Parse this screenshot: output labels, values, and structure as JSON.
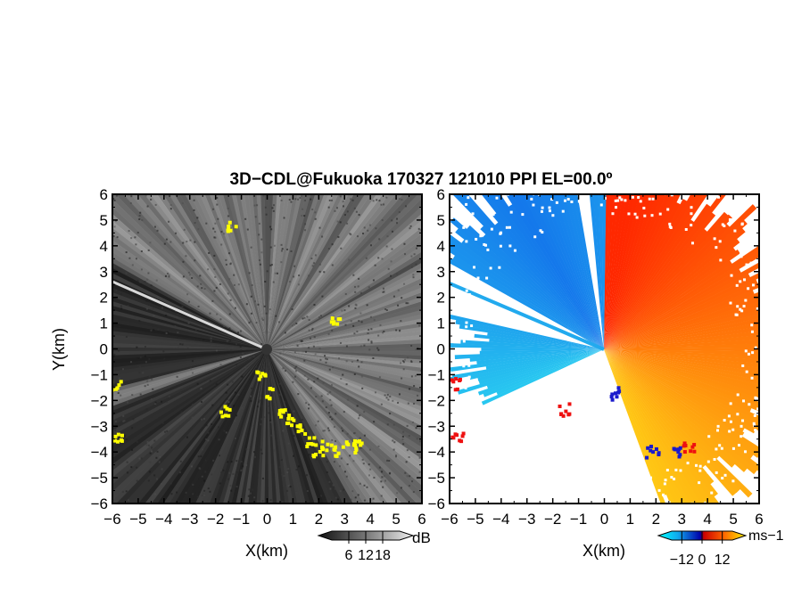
{
  "title": "3D−CDL@Fukuoka 170327 121010 PPI EL=00.0º",
  "chart_data": [
    {
      "type": "heatmap",
      "panel": "reflectivity",
      "xlabel": "X(km)",
      "ylabel": "Y(km)",
      "xlim": [
        -6,
        6
      ],
      "ylim": [
        -6,
        6
      ],
      "x_ticks": [
        "−6",
        "−5",
        "−4",
        "−3",
        "−2",
        "−1",
        "0",
        "1",
        "2",
        "3",
        "4",
        "5",
        "6"
      ],
      "y_ticks": [
        "6",
        "5",
        "4",
        "3",
        "2",
        "1",
        "0",
        "−1",
        "−2",
        "−3",
        "−4",
        "−5",
        "−6"
      ],
      "colorbar": {
        "unit": "dB",
        "ticks": [
          "6",
          "12",
          "18"
        ],
        "range": [
          0,
          24
        ]
      },
      "colors": {
        "background": "#262626",
        "low": "#1e1e1e",
        "high": "#f2f2f2",
        "highlight": "#ffff00"
      }
    },
    {
      "type": "heatmap",
      "panel": "doppler-velocity",
      "xlabel": "X(km)",
      "xlim": [
        -6,
        6
      ],
      "ylim": [
        -6,
        6
      ],
      "x_ticks": [
        "−6",
        "−5",
        "−4",
        "−3",
        "−2",
        "−1",
        "0",
        "1",
        "2",
        "3",
        "4",
        "5",
        "6"
      ],
      "y_ticks": [
        "6",
        "5",
        "4",
        "3",
        "2",
        "1",
        "0",
        "−1",
        "−2",
        "−3",
        "−4",
        "−5",
        "−6"
      ],
      "colorbar": {
        "unit": "ms−1",
        "ticks": [
          "−12",
          "0",
          "12"
        ],
        "range": [
          -18,
          18
        ]
      },
      "colors": {
        "toward": "#1e6cf0",
        "away": "#ff8a00",
        "fold_negative": "#1a1acc",
        "fold_positive": "#ee1111"
      }
    }
  ]
}
